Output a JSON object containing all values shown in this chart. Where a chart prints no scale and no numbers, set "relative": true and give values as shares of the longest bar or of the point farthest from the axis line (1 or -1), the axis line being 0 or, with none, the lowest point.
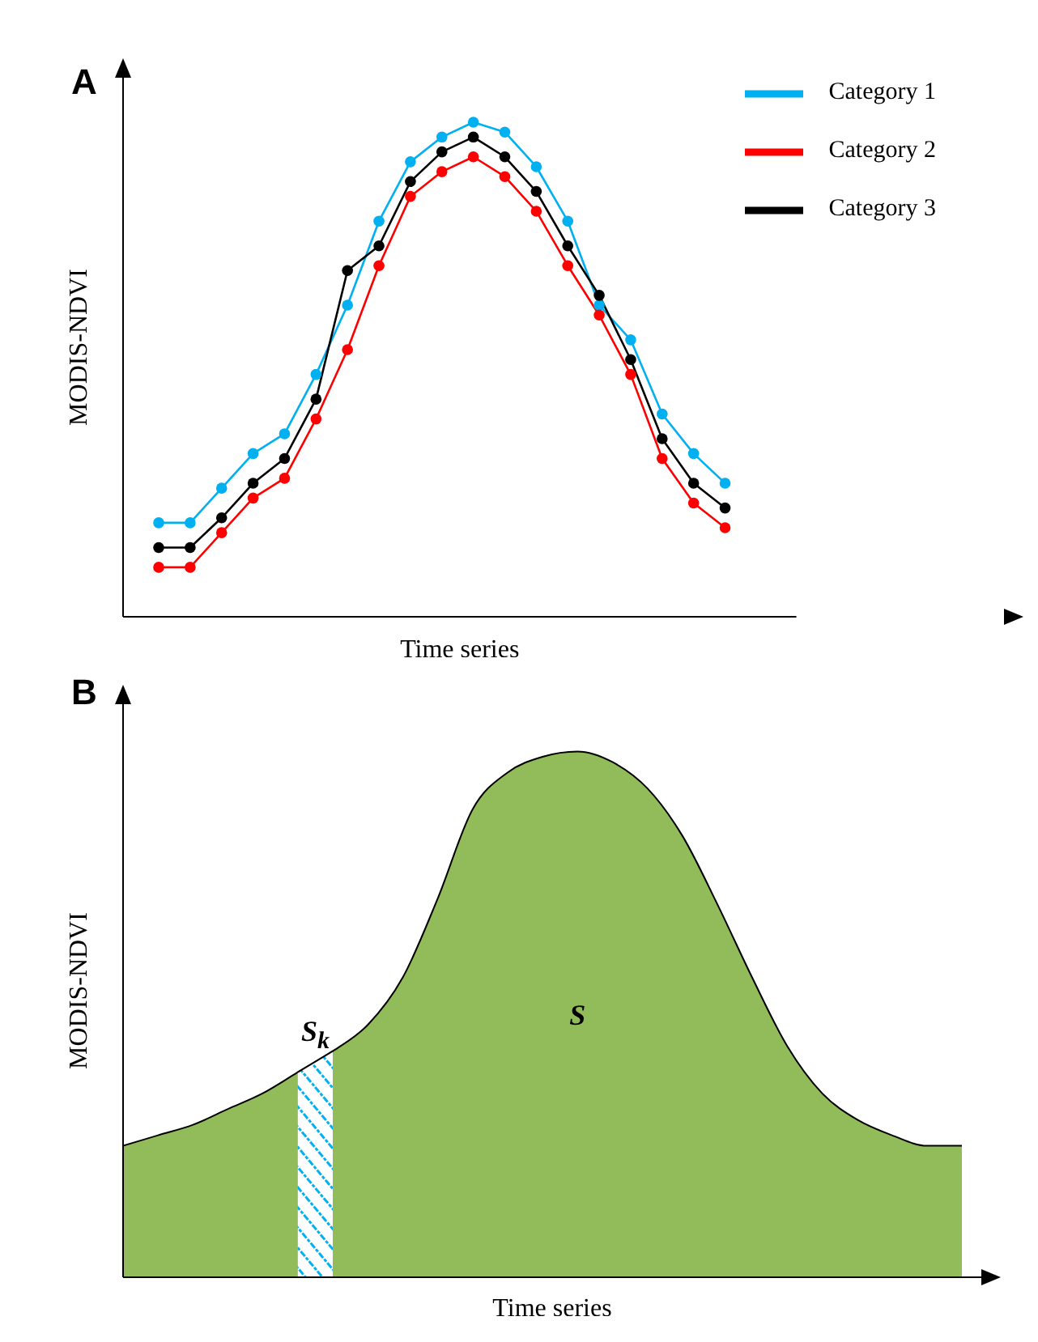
{
  "chart_data": [
    {
      "type": "line",
      "title": "A",
      "xlabel": "Time series",
      "ylabel": "MODIS-NDVI",
      "relative": true,
      "legend": "top right",
      "marker": "circle",
      "line_style": "solid",
      "categories": [
        null,
        null,
        null,
        null,
        null,
        null,
        null,
        null,
        null,
        null,
        null,
        null,
        null,
        null,
        null,
        null,
        null,
        null,
        null
      ],
      "series": [
        {
          "name": "Category 1",
          "color": "#00b0f0",
          "values": [
            0.19,
            0.19,
            0.26,
            0.33,
            0.37,
            0.49,
            0.63,
            0.8,
            0.92,
            0.97,
            1.0,
            0.98,
            0.91,
            0.8,
            0.63,
            0.56,
            0.41,
            0.33,
            0.27
          ]
        },
        {
          "name": "Category 2",
          "color": "#ff0000",
          "values": [
            0.1,
            0.1,
            0.17,
            0.24,
            0.28,
            0.4,
            0.54,
            0.71,
            0.85,
            0.9,
            0.93,
            0.89,
            0.82,
            0.71,
            0.61,
            0.49,
            0.32,
            0.23,
            0.18
          ]
        },
        {
          "name": "Category 3",
          "color": "#000000",
          "values": [
            0.14,
            0.14,
            0.2,
            0.27,
            0.32,
            0.44,
            0.7,
            0.75,
            0.88,
            0.94,
            0.97,
            0.93,
            0.86,
            0.75,
            0.65,
            0.52,
            0.36,
            0.27,
            0.22
          ]
        }
      ]
    },
    {
      "type": "area",
      "title": "B",
      "xlabel": "Time series",
      "ylabel": "MODIS-NDVI",
      "relative": true,
      "categories": [
        null,
        null,
        null,
        null,
        null,
        null,
        null,
        null,
        null,
        null,
        null,
        null,
        null,
        null,
        null,
        null,
        null,
        null,
        null,
        null,
        null,
        null,
        null,
        null,
        null
      ],
      "series": [
        {
          "color": "#92bc5a",
          "values": [
            0.25,
            0.27,
            0.29,
            0.32,
            0.35,
            0.39,
            0.43,
            0.48,
            0.57,
            0.72,
            0.89,
            0.96,
            0.99,
            1.0,
            0.98,
            0.93,
            0.84,
            0.71,
            0.57,
            0.44,
            0.35,
            0.3,
            0.27,
            0.25,
            0.25
          ]
        },
        {
          "color": "#00b0f0",
          "values": [
            null,
            null,
            null,
            null,
            null,
            0.39,
            0.43,
            null,
            null,
            null,
            null,
            null,
            null,
            null,
            null,
            null,
            null,
            null,
            null,
            null,
            null,
            null,
            null,
            null,
            null
          ]
        }
      ],
      "annotations": [
        "S$_{k}$",
        "S"
      ]
    }
  ]
}
